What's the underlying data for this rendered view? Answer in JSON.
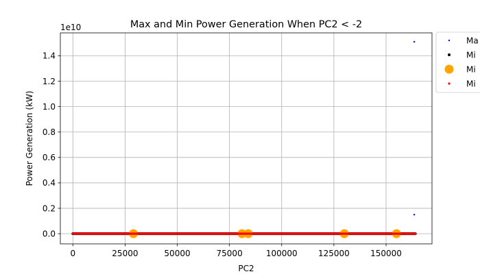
{
  "chart_data": {
    "type": "scatter",
    "title": "Max and Min Power Generation When PC2 < -2",
    "xlabel": "PC2",
    "ylabel": "Power Generation (kW)",
    "y_offset_text": "1e10",
    "xlim": [
      -6000,
      172000
    ],
    "ylim": [
      -0.08,
      1.58
    ],
    "y_scale": 10000000000.0,
    "grid": true,
    "legend_position": "outside-upper-right",
    "x_ticks": [
      0,
      25000,
      50000,
      75000,
      100000,
      125000,
      150000
    ],
    "x_tick_labels": [
      "0",
      "25000",
      "50000",
      "75000",
      "100000",
      "125000",
      "150000"
    ],
    "y_ticks": [
      0.0,
      0.2,
      0.4,
      0.6,
      0.8,
      1.0,
      1.2,
      1.4
    ],
    "y_tick_labels": [
      "0.0",
      "0.2",
      "0.4",
      "0.6",
      "0.8",
      "1.0",
      "1.2",
      "1.4"
    ],
    "series": [
      {
        "name": "Ma",
        "color": "#0000ff",
        "marker_size": 1.2,
        "style": "points",
        "points": [
          [
            163500,
            1.51
          ],
          [
            163500,
            0.15
          ]
        ]
      },
      {
        "name": "Mi",
        "color": "#000000",
        "marker_size": 2,
        "style": "band",
        "x_range": [
          0,
          164000
        ],
        "y": 0.0
      },
      {
        "name": "Mi",
        "color": "#ffa500",
        "marker_size": 6.5,
        "style": "points",
        "points": [
          [
            29000,
            0.0
          ],
          [
            81000,
            0.0
          ],
          [
            84000,
            0.0
          ],
          [
            130000,
            0.0
          ],
          [
            155000,
            0.0
          ]
        ]
      },
      {
        "name": "Mi",
        "color": "#ff0000",
        "marker_size": 1.6,
        "style": "band",
        "x_range": [
          0,
          164000
        ],
        "y": 0.0
      }
    ]
  }
}
